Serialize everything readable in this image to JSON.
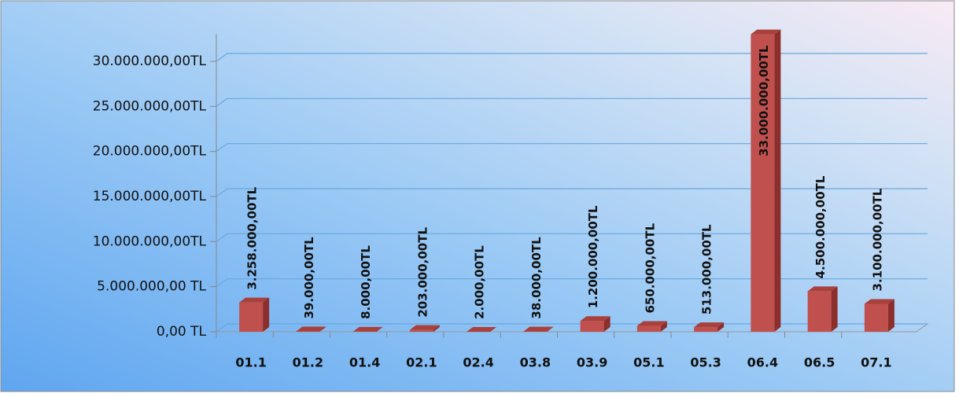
{
  "chart_data": {
    "type": "bar",
    "categories": [
      "01.1",
      "01.2",
      "01.4",
      "02.1",
      "02.4",
      "03.8",
      "03.9",
      "05.1",
      "05.3",
      "06.4",
      "06.5",
      "07.1"
    ],
    "values": [
      3258000,
      39000,
      8000,
      203000,
      2000,
      38000,
      1200000,
      650000,
      513000,
      33000000,
      4500000,
      3100000
    ],
    "value_labels": [
      "3.258.000,00TL",
      "39.000,00TL",
      "8.000,00TL",
      "203.000,00TL",
      "2.000,00TL",
      "38.000,00TL",
      "1.200.000,00TL",
      "650.000,00TL",
      "513.000,00TL",
      "33.000.000,00TL",
      "4.500.000,00TL",
      "3.100.000,00TL"
    ],
    "color": "#c0504d",
    "ylim": [
      0,
      33000000
    ],
    "yticks": [
      {
        "value": 0,
        "label": "0,00 TL"
      },
      {
        "value": 5000000,
        "label": "5.000.000,00 TL"
      },
      {
        "value": 10000000,
        "label": "10.000.000,00TL"
      },
      {
        "value": 15000000,
        "label": "15.000.000,00TL"
      },
      {
        "value": 20000000,
        "label": "20.000.000,00TL"
      },
      {
        "value": 25000000,
        "label": "25.000.000,00TL"
      },
      {
        "value": 30000000,
        "label": "30.000.000,00TL"
      }
    ],
    "grid": true
  }
}
